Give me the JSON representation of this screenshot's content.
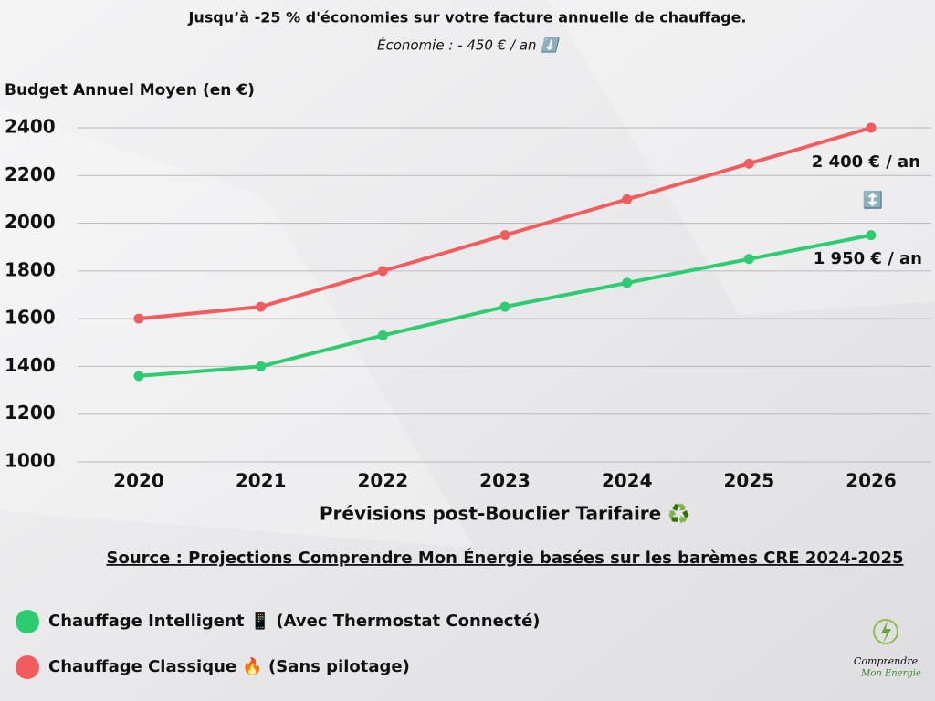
{
  "chart_data": {
    "type": "line",
    "title": "Jusqu’à -25 % d'économies sur votre facture annuelle de chauffage.",
    "subtitle": "Économie : - 450 € / an ⬇️",
    "y_label": "Budget Annuel Moyen (en €)",
    "x_label": "Prévisions post-Bouclier Tarifaire ♻️",
    "source": "Source : Projections Comprendre Mon Énergie basées sur les barèmes CRE 2024-2025",
    "categories": [
      "2020",
      "2021",
      "2022",
      "2023",
      "2024",
      "2025",
      "2026"
    ],
    "series": [
      {
        "name": "Chauffage Intelligent 📱 (Avec Thermostat Connecté)",
        "color": "#2ecc71",
        "values": [
          1360,
          1400,
          1530,
          1650,
          1750,
          1850,
          1950
        ]
      },
      {
        "name": "Chauffage Classique 🔥 (Sans pilotage)",
        "color": "#f25c5c",
        "values": [
          1600,
          1650,
          1800,
          1950,
          2100,
          2250,
          2400
        ]
      }
    ],
    "annotations": [
      "2 400 € / an",
      "↕️",
      "1 950 € / an"
    ],
    "ylim": [
      1000,
      2400
    ],
    "yticks": [
      1000,
      1200,
      1400,
      1600,
      1800,
      2000,
      2200,
      2400
    ],
    "grid": true,
    "logo": [
      "Comprendre",
      "Mon Energie"
    ]
  }
}
